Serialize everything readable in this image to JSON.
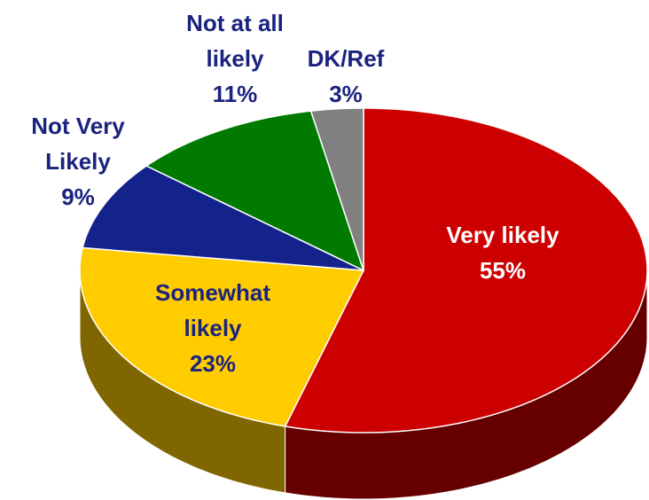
{
  "chart_data": {
    "type": "pie",
    "categories": [
      "Very likely",
      "Somewhat likely",
      "Not Very Likely",
      "Not at all likely",
      "DK/Ref"
    ],
    "values": [
      55,
      23,
      9,
      11,
      3
    ],
    "value_labels": [
      "55%",
      "23%",
      "9%",
      "11%",
      "3%"
    ],
    "colors": [
      "#cc0000",
      "#ffcc00",
      "#14238c",
      "#007a00",
      "#808080"
    ]
  }
}
